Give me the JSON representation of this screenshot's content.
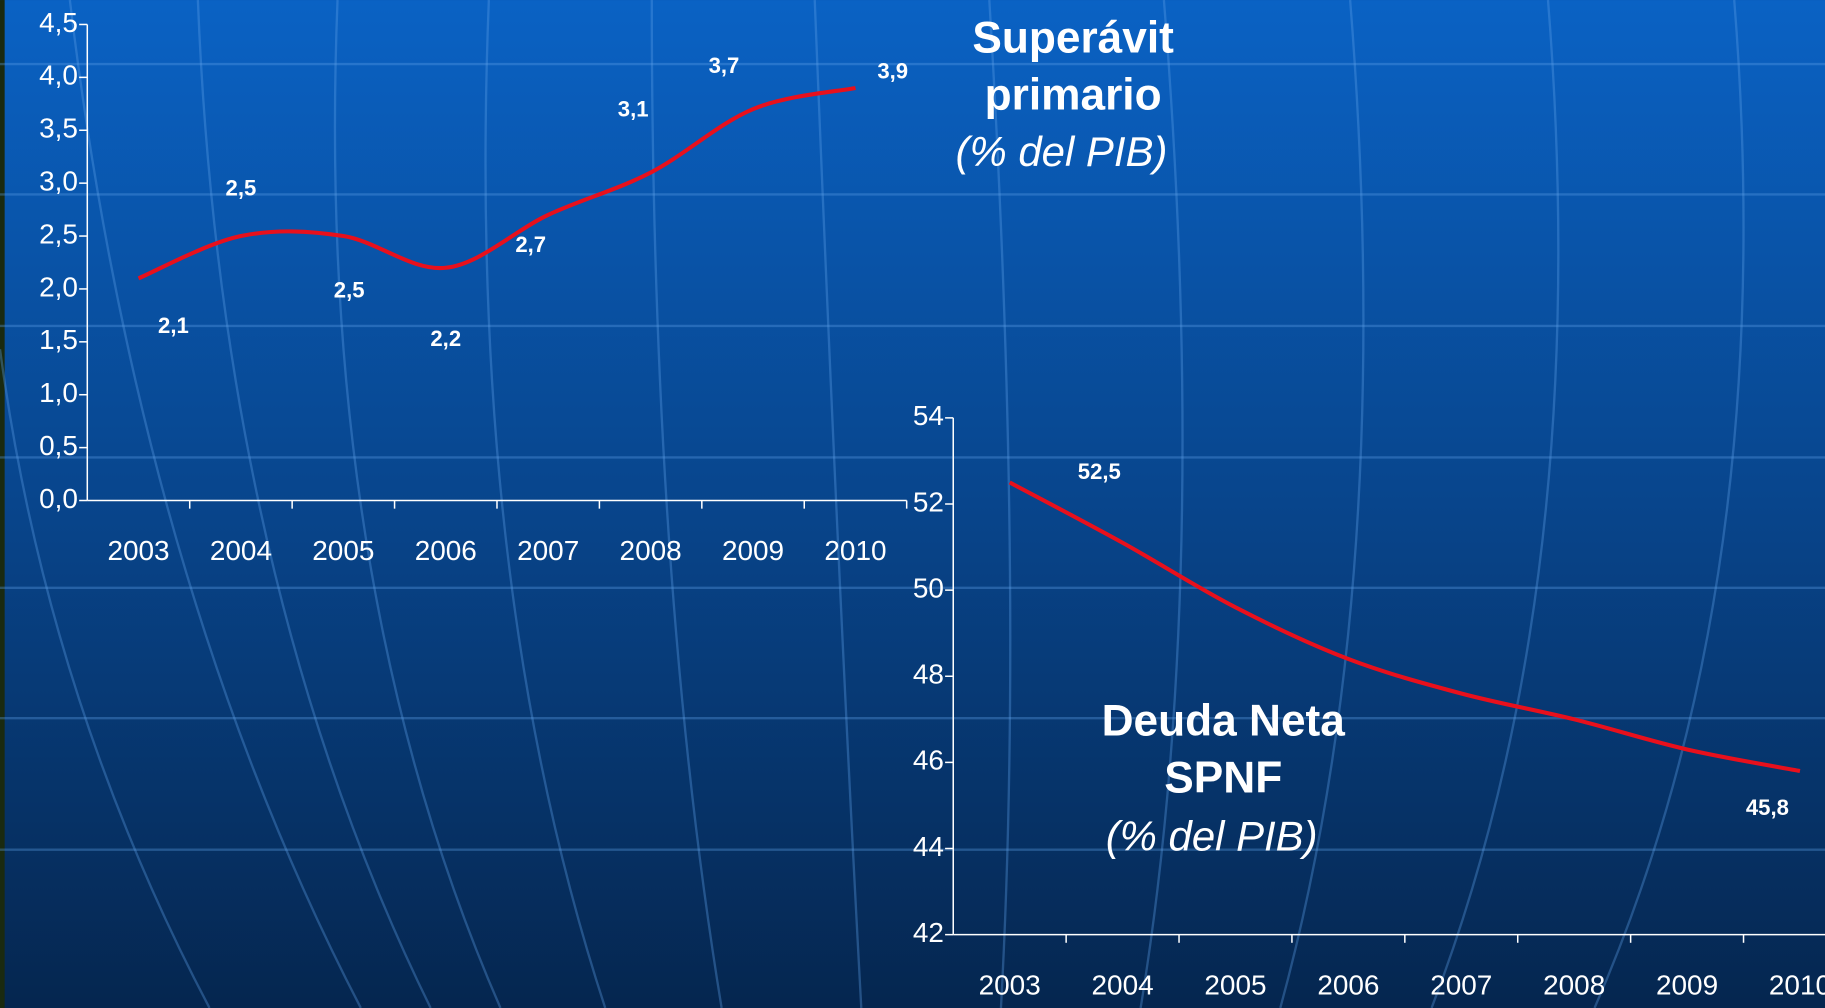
{
  "chart_data": [
    {
      "type": "line",
      "title": [
        "Superávit",
        "primario"
      ],
      "subtitle": "(% del PIB)",
      "categories": [
        "2003",
        "2004",
        "2005",
        "2006",
        "2007",
        "2008",
        "2009",
        "2010"
      ],
      "series": [
        {
          "name": "Superávit primario",
          "color": "#e8101c",
          "values": [
            2.1,
            2.5,
            2.5,
            2.2,
            2.7,
            3.1,
            3.7,
            3.9
          ],
          "value_labels": [
            "2,1",
            "2,5",
            "2,5",
            "2,2",
            "2,7",
            "3,1",
            "3,7",
            "3,9"
          ]
        }
      ],
      "ylim": [
        0,
        4.5
      ],
      "yticks": [
        {
          "value": 0,
          "label": "0,0"
        },
        {
          "value": 0.5,
          "label": "0,5"
        },
        {
          "value": 1,
          "label": "1,0"
        },
        {
          "value": 1.5,
          "label": "1,5"
        },
        {
          "value": 2,
          "label": "2,0"
        },
        {
          "value": 2.5,
          "label": "2,5"
        },
        {
          "value": 3,
          "label": "3,0"
        },
        {
          "value": 3.5,
          "label": "3,5"
        },
        {
          "value": 4,
          "label": "4,0"
        },
        {
          "value": 4.5,
          "label": "4,5"
        }
      ]
    },
    {
      "type": "line",
      "title": [
        "Deuda Neta",
        "SPNF"
      ],
      "subtitle": "(% del PIB)",
      "categories": [
        "2003",
        "2004",
        "2005",
        "2006",
        "2007",
        "2008",
        "2009",
        "2010"
      ],
      "series": [
        {
          "name": "Deuda Neta SPNF",
          "color": "#e8101c",
          "values": [
            52.5,
            51.1,
            49.6,
            48.4,
            47.6,
            47.0,
            46.3,
            45.8
          ],
          "value_labels": [
            "52,5",
            null,
            null,
            null,
            null,
            null,
            null,
            "45,8"
          ]
        }
      ],
      "ylim": [
        42,
        54
      ],
      "yticks": [
        42,
        44,
        46,
        48,
        50,
        52,
        54
      ]
    }
  ]
}
